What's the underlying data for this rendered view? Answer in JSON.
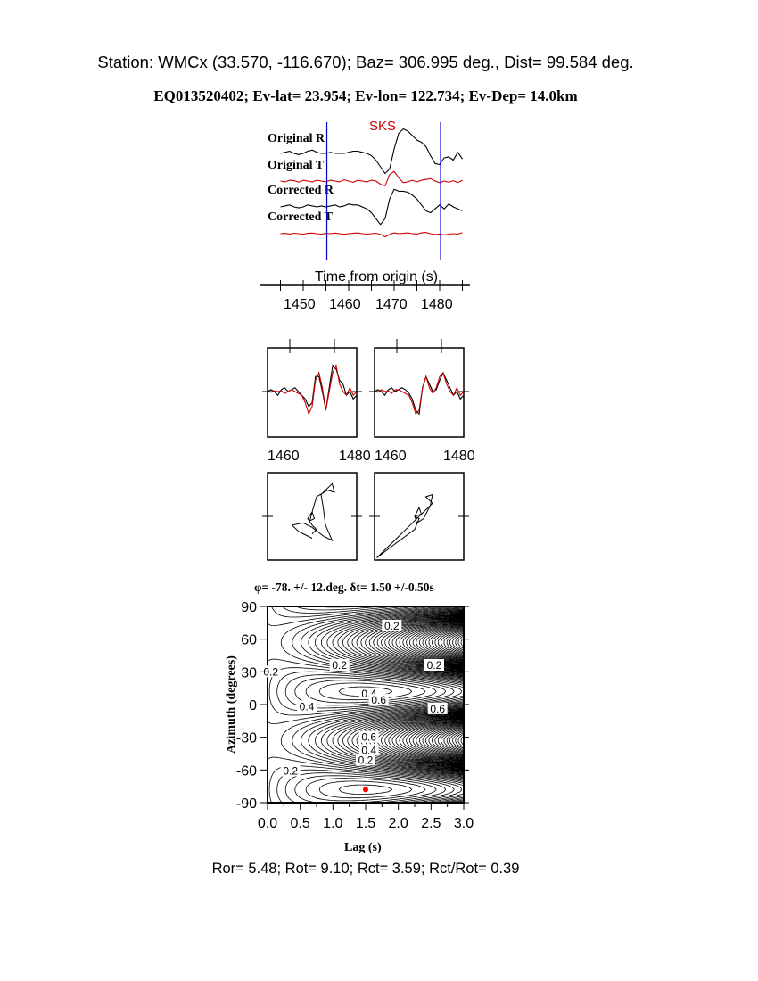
{
  "header": {
    "station_line": "Station: WMCx (33.570, -116.670); Baz=  306.995 deg., Dist=   99.584 deg.",
    "event_line": "EQ013520402; Ev-lat=  23.954; Ev-lon= 122.734; Ev-Dep= 14.0km"
  },
  "colors": {
    "trace_r": "#000000",
    "trace_t": "#cc0000",
    "window_line": "#0000cc",
    "phase_label": "#cc0000",
    "best_fit_point": "#ff0000"
  },
  "chart_data": [
    {
      "type": "line",
      "phase_label": "SKS",
      "xlabel": "Time from origin (s)",
      "xlim": [
        1444,
        1487
      ],
      "xticks": [
        "1450",
        "1460",
        "1470",
        "1480"
      ],
      "window": [
        1455.2,
        1480.2
      ],
      "series": [
        {
          "name": "Original R",
          "color": "#000000",
          "t0": 1445,
          "dt": 1,
          "values": [
            0,
            0.05,
            0.1,
            0,
            -0.05,
            0,
            0.1,
            0.15,
            0.05,
            0,
            0,
            0.05,
            0,
            0,
            0,
            0.05,
            0.1,
            0.1,
            0.05,
            0,
            -0.1,
            -0.3,
            -0.6,
            -0.9,
            -0.7,
            0.2,
            0.9,
            1.1,
            1.0,
            0.8,
            0.6,
            0.5,
            0.3,
            -0.1,
            -0.45,
            -0.5,
            -0.2,
            -0.15,
            -0.3,
            0.05,
            -0.25
          ]
        },
        {
          "name": "Original T",
          "color": "#cc0000",
          "t0": 1445,
          "dt": 1,
          "values": [
            0,
            -0.05,
            0.05,
            0.02,
            -0.06,
            0.05,
            0,
            -0.05,
            0.05,
            0.0,
            -0.05,
            0.05,
            0.0,
            -0.05,
            0.08,
            0.0,
            -0.08,
            0.05,
            0.0,
            -0.05,
            0.05,
            0.0,
            -0.2,
            -0.3,
            0.4,
            0.6,
            0.2,
            -0.1,
            -0.05,
            0.05,
            -0.05,
            0.05,
            0.1,
            0.15,
            0.0,
            -0.1,
            0.0,
            -0.08,
            0.02,
            -0.1,
            0.05
          ]
        },
        {
          "name": "Corrected R",
          "color": "#000000",
          "t0": 1445,
          "dt": 1,
          "values": [
            0,
            0.05,
            0.1,
            0,
            -0.05,
            0,
            0.1,
            0.05,
            0.0,
            0.05,
            0.0,
            0.05,
            0.1,
            0.0,
            0.05,
            0.15,
            0.1,
            0.1,
            0.0,
            -0.1,
            -0.3,
            -0.6,
            -0.9,
            -0.6,
            0.4,
            0.9,
            0.8,
            0.8,
            0.75,
            0.6,
            0.4,
            0.1,
            -0.2,
            -0.3,
            -0.1,
            0.1,
            -0.1,
            0.15,
            0.0,
            -0.1,
            -0.2
          ]
        },
        {
          "name": "Corrected T",
          "color": "#cc0000",
          "t0": 1445,
          "dt": 1,
          "values": [
            0,
            0.02,
            -0.02,
            0.03,
            0.0,
            -0.03,
            0.02,
            0.04,
            0.0,
            -0.03,
            0.02,
            0.0,
            0.04,
            0.0,
            -0.04,
            0.0,
            0.02,
            0.05,
            0.0,
            -0.03,
            0.0,
            0.03,
            -0.05,
            -0.2,
            -0.05,
            0.05,
            0.0,
            0.02,
            0.05,
            0.0,
            -0.02,
            0.05,
            0.08,
            0.0,
            -0.05,
            -0.02,
            -0.08,
            -0.03,
            0.0,
            -0.02,
            0.06
          ]
        }
      ]
    },
    {
      "type": "line",
      "panels": [
        "before",
        "after"
      ],
      "xlim": [
        1455,
        1481
      ],
      "xticks_left": [
        "1460",
        "1480"
      ],
      "xticks_right": [
        "1460",
        "1480"
      ],
      "t0": 1455,
      "dt": 1,
      "before_black": [
        0,
        0.05,
        0,
        -0.1,
        0.05,
        0.1,
        0.0,
        0.05,
        0.1,
        0.0,
        -0.1,
        -0.2,
        -0.4,
        -0.3,
        0.4,
        0.4,
        0.0,
        -0.5,
        0.1,
        0.7,
        0.6,
        0.3,
        0.2,
        -0.1,
        0.0,
        -0.2,
        -0.1
      ],
      "before_red": [
        0,
        -0.02,
        0.02,
        0.0,
        0.02,
        -0.05,
        0.0,
        0.05,
        0.0,
        -0.05,
        -0.1,
        -0.3,
        -0.6,
        -0.4,
        0.3,
        0.5,
        0.1,
        -0.5,
        0.0,
        0.5,
        0.7,
        0.2,
        0.0,
        -0.1,
        0.1,
        -0.1,
        0.0
      ],
      "after_black": [
        0,
        0.05,
        0.0,
        -0.1,
        0.05,
        0.1,
        0.0,
        0.05,
        0.1,
        0.05,
        -0.05,
        -0.2,
        -0.5,
        -0.6,
        0.1,
        0.4,
        0.2,
        0.0,
        0.05,
        0.3,
        0.5,
        0.3,
        0.1,
        -0.1,
        0.0,
        -0.2,
        -0.1
      ],
      "after_red": [
        0,
        -0.02,
        0.05,
        0.0,
        0.02,
        -0.05,
        0.05,
        0.05,
        0.0,
        -0.05,
        -0.1,
        -0.3,
        -0.6,
        -0.5,
        0.1,
        0.4,
        0.1,
        -0.05,
        0.1,
        0.4,
        0.5,
        0.2,
        0.0,
        -0.1,
        0.1,
        -0.1,
        0.0
      ]
    },
    {
      "type": "scatter",
      "subtype": "particle-motion",
      "before": [
        [
          0.0,
          -0.5
        ],
        [
          -0.3,
          -0.35
        ],
        [
          -0.45,
          -0.2
        ],
        [
          -0.2,
          -0.15
        ],
        [
          0.0,
          -0.25
        ],
        [
          0.25,
          -0.45
        ],
        [
          0.45,
          -0.55
        ],
        [
          0.3,
          -0.2
        ],
        [
          0.25,
          0.2
        ],
        [
          0.2,
          0.5
        ],
        [
          0.45,
          0.75
        ],
        [
          0.5,
          0.55
        ],
        [
          0.35,
          0.6
        ],
        [
          0.1,
          0.45
        ],
        [
          0.0,
          0.1
        ],
        [
          -0.05,
          -0.1
        ],
        [
          0.05,
          -0.05
        ],
        [
          0.0,
          0.1
        ],
        [
          -0.1,
          -0.05
        ],
        [
          0.0,
          -0.2
        ],
        [
          0.1,
          -0.3
        ],
        [
          0.0,
          -0.4
        ]
      ],
      "after": [
        [
          -0.95,
          -0.95
        ],
        [
          -0.5,
          -0.6
        ],
        [
          -0.1,
          -0.3
        ],
        [
          0.0,
          -0.05
        ],
        [
          -0.1,
          0.0
        ],
        [
          0.0,
          0.2
        ],
        [
          0.05,
          0.05
        ],
        [
          -0.1,
          0.0
        ],
        [
          -0.05,
          -0.15
        ],
        [
          0.1,
          -0.05
        ],
        [
          0.25,
          0.25
        ],
        [
          0.3,
          0.5
        ],
        [
          0.15,
          0.45
        ],
        [
          0.3,
          0.3
        ],
        [
          0.1,
          0.1
        ],
        [
          -0.2,
          -0.2
        ],
        [
          -0.6,
          -0.6
        ],
        [
          -0.95,
          -0.95
        ]
      ]
    },
    {
      "type": "heatmap",
      "subtype": "contour",
      "title": "φ= -78. +/- 12.deg. δt= 1.50 +/-0.50s",
      "xlabel": "Lag (s)",
      "ylabel": "Azimuth (degrees)",
      "xlim": [
        0,
        3
      ],
      "ylim": [
        -90,
        90
      ],
      "xticks": [
        "0.0",
        "0.5",
        "1.0",
        "1.5",
        "2.0",
        "2.5",
        "3.0"
      ],
      "yticks": [
        "90",
        "60",
        "30",
        "0",
        "-30",
        "-60",
        "-90"
      ],
      "contour_labels": [
        "0.2",
        "0.2",
        "0.2",
        "0.2",
        "0.4",
        "0.4",
        "0.6",
        "0.6",
        "0.6",
        "0.4",
        "0.2",
        "0.2"
      ],
      "best_fit": {
        "lag": 1.5,
        "azimuth": -78
      }
    }
  ],
  "footer": {
    "ratios": "Ror= 5.48; Rot= 9.10; Rct= 3.59; Rct/Rot= 0.39"
  }
}
